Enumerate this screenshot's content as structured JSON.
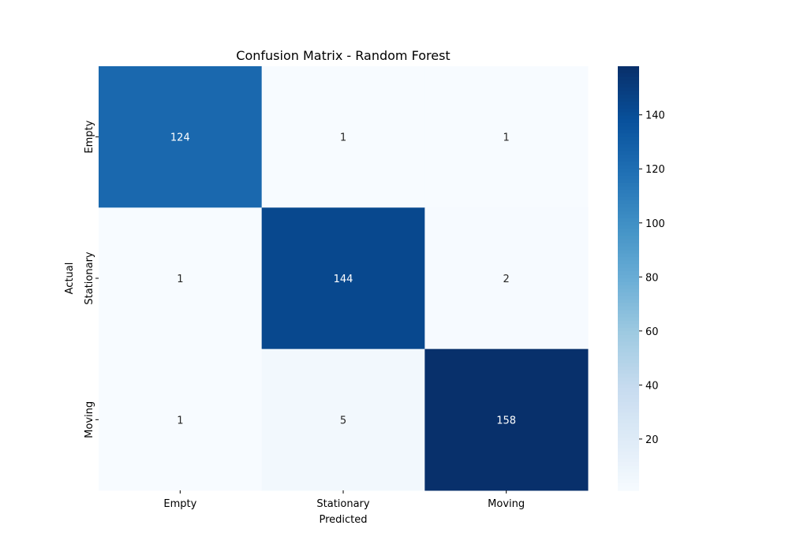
{
  "chart_data": {
    "type": "heatmap",
    "title": "Confusion Matrix - Random Forest",
    "xlabel": "Predicted",
    "ylabel": "Actual",
    "x_categories": [
      "Empty",
      "Stationary",
      "Moving"
    ],
    "y_categories": [
      "Empty",
      "Stationary",
      "Moving"
    ],
    "values": [
      [
        124,
        1,
        1
      ],
      [
        1,
        144,
        2
      ],
      [
        1,
        5,
        158
      ]
    ],
    "colormap": "Blues",
    "color_range": [
      1,
      158
    ],
    "colorbar_ticks": [
      20,
      40,
      60,
      80,
      100,
      120,
      140
    ],
    "annotations": true
  }
}
